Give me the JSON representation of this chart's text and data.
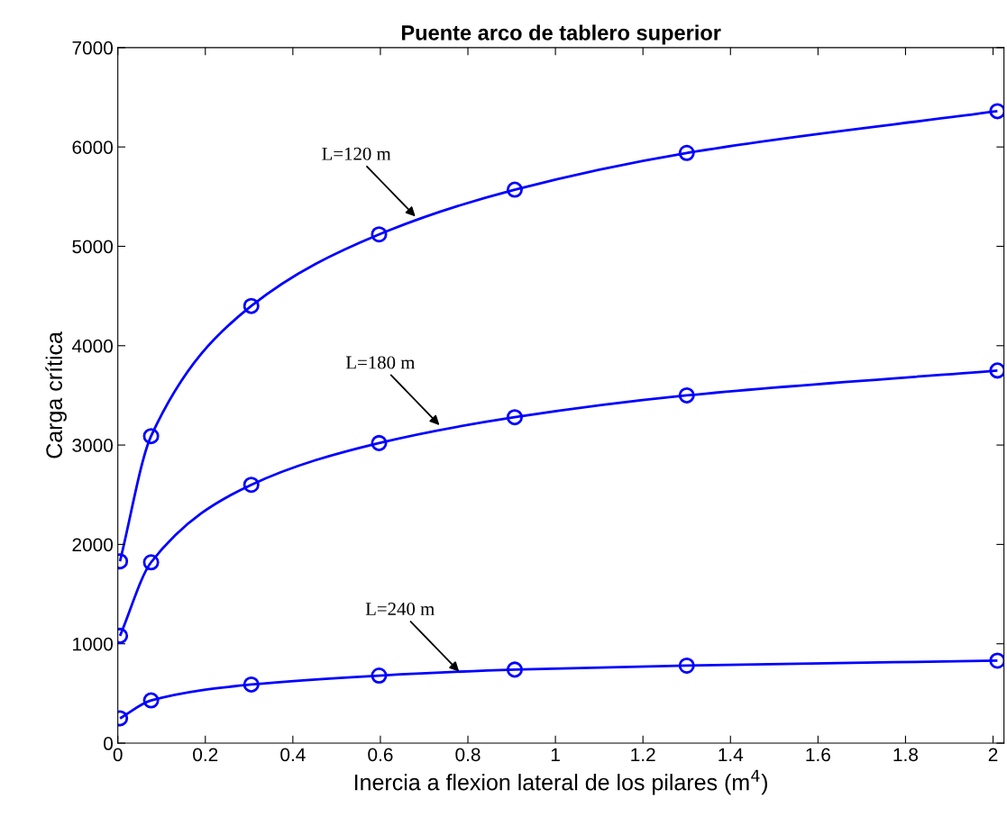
{
  "chart_data": {
    "type": "line",
    "title": "Puente arco de tablero superior",
    "xlabel": "Inercia a flexion lateral de los pilares (m$^{4}$)",
    "ylabel": "Carga crítica",
    "x": [
      0.005,
      0.076,
      0.305,
      0.597,
      0.907,
      1.3,
      2.01
    ],
    "series": [
      {
        "color": "#0000ff",
        "values": [
          1830,
          3090,
          4400,
          5120,
          5570,
          5940,
          6360
        ]
      },
      {
        "color": "#0000ff",
        "values": [
          1080,
          1820,
          2600,
          3020,
          3280,
          3500,
          3750
        ]
      },
      {
        "color": "#0000ff",
        "values": [
          250,
          430,
          590,
          680,
          740,
          780,
          830
        ]
      }
    ],
    "annotations": [
      {
        "text": "L=120 m",
        "x": 0.68,
        "y": 5300
      },
      {
        "text": "L=180 m",
        "x": 0.735,
        "y": 3200
      },
      {
        "text": "L=240 m",
        "x": 0.78,
        "y": 720
      }
    ],
    "xlim": [
      0,
      2.025
    ],
    "ylim": [
      0,
      7000
    ],
    "xticks": [
      0,
      0.2,
      0.4,
      0.6,
      0.8,
      1,
      1.2,
      1.4,
      1.6,
      1.8,
      2
    ],
    "yticks": [
      0,
      1000,
      2000,
      3000,
      4000,
      5000,
      6000,
      7000
    ],
    "grid": false,
    "marker": "circle",
    "line_style": "solid"
  }
}
